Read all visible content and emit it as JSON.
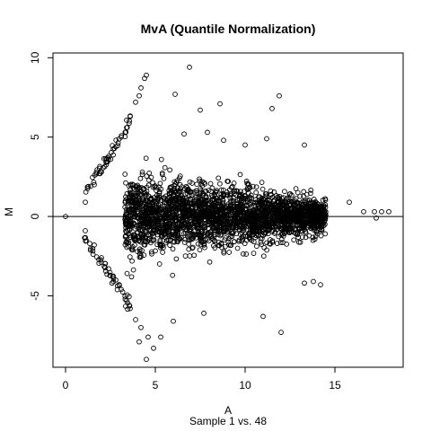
{
  "chart_data": {
    "type": "scatter",
    "title": "MvA (Quantile Normalization)",
    "xlabel": "A",
    "ylabel": "M",
    "subtitle": "Sample 1 vs. 48",
    "xlim": [
      -0.7,
      18.8
    ],
    "ylim": [
      -9.5,
      10.3
    ],
    "xticks": [
      0,
      5,
      10,
      15
    ],
    "yticks": [
      -5,
      0,
      5,
      10
    ],
    "hline": 0,
    "grid": false,
    "legend": "none",
    "marker": "open-circle",
    "colors": {
      "points": "#000000",
      "axes": "#000000",
      "background": "#ffffff"
    },
    "series": [
      {
        "points": [
          [
            0.0,
            0.0
          ],
          [
            1.1,
            0.9
          ],
          [
            1.6,
            2.0
          ],
          [
            2.0,
            2.8
          ],
          [
            2.4,
            3.6
          ],
          [
            2.8,
            4.4
          ],
          [
            3.1,
            5.0
          ],
          [
            3.4,
            5.6
          ],
          [
            3.6,
            6.3
          ],
          [
            3.9,
            7.2
          ],
          [
            4.1,
            7.6
          ],
          [
            4.2,
            8.1
          ],
          [
            4.4,
            8.7
          ],
          [
            4.5,
            8.9
          ],
          [
            1.1,
            -0.9
          ],
          [
            1.6,
            -1.8
          ],
          [
            2.0,
            -2.6
          ],
          [
            2.4,
            -3.3
          ],
          [
            2.8,
            -4.0
          ],
          [
            3.1,
            -4.6
          ],
          [
            3.4,
            -5.3
          ],
          [
            3.6,
            -5.8
          ],
          [
            3.9,
            -6.5
          ],
          [
            4.2,
            -7.0
          ],
          [
            4.6,
            -7.6
          ],
          [
            4.9,
            -8.3
          ],
          [
            4.5,
            -9.0
          ],
          [
            6.9,
            9.4
          ],
          [
            6.1,
            7.7
          ],
          [
            7.5,
            6.7
          ],
          [
            8.6,
            7.1
          ],
          [
            11.9,
            7.6
          ],
          [
            11.5,
            6.8
          ],
          [
            6.6,
            5.2
          ],
          [
            7.9,
            5.3
          ],
          [
            8.8,
            4.8
          ],
          [
            10.0,
            4.5
          ],
          [
            11.2,
            4.9
          ],
          [
            13.3,
            4.5
          ],
          [
            15.8,
            0.9
          ],
          [
            16.6,
            0.3
          ],
          [
            17.2,
            0.3
          ],
          [
            17.6,
            0.3
          ],
          [
            18.0,
            0.3
          ],
          [
            17.3,
            -0.1
          ],
          [
            13.8,
            -4.1
          ],
          [
            14.2,
            -4.3
          ],
          [
            13.3,
            -4.2
          ],
          [
            12.0,
            -7.3
          ],
          [
            11.0,
            -6.3
          ],
          [
            7.7,
            -6.1
          ],
          [
            5.3,
            -7.6
          ],
          [
            4.1,
            -7.9
          ],
          [
            6.0,
            -6.6
          ]
        ]
      }
    ]
  }
}
